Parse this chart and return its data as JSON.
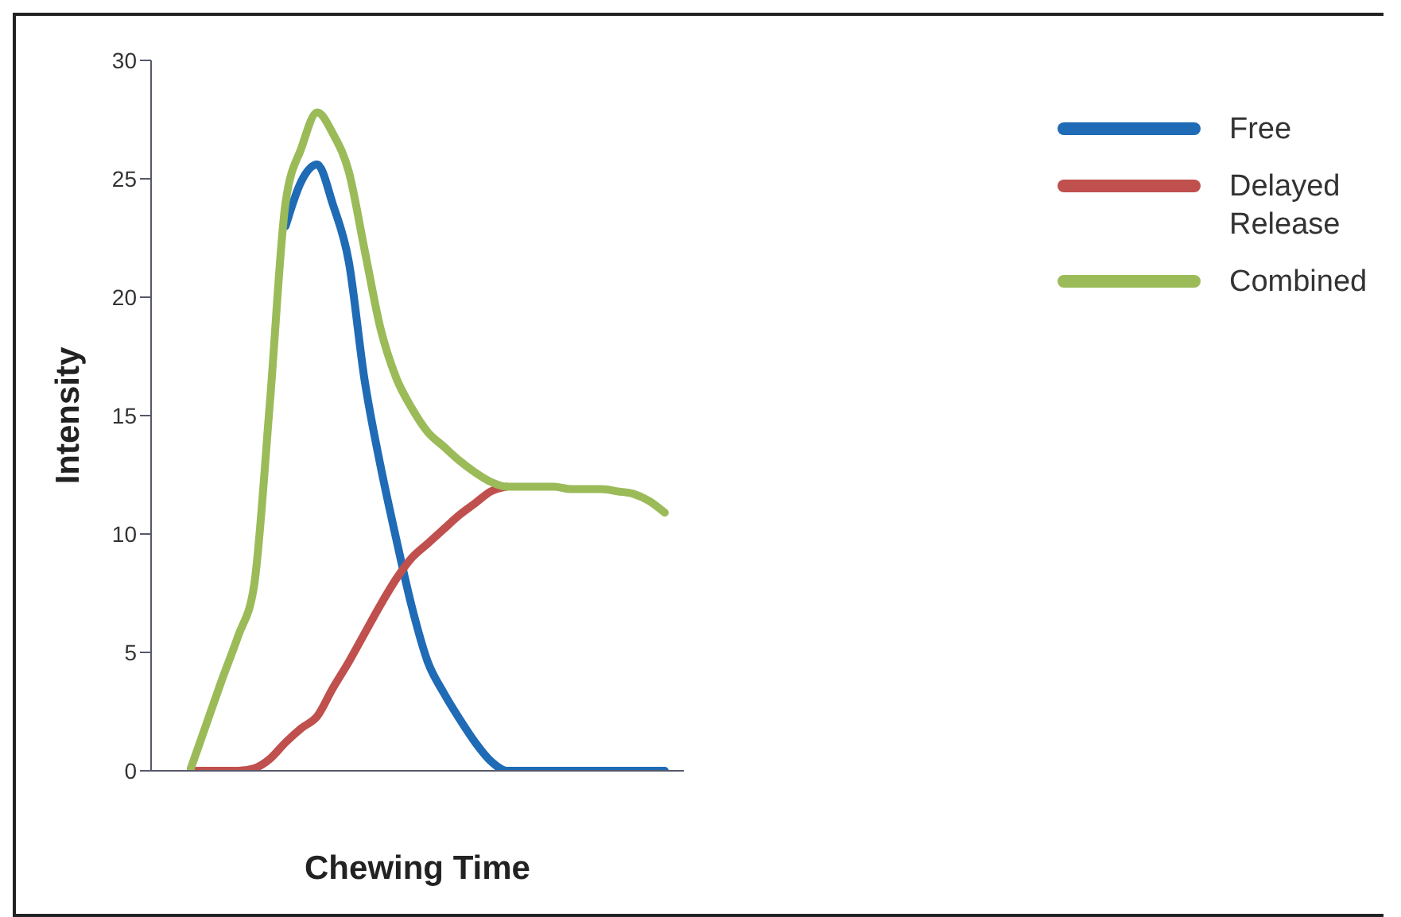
{
  "chart_data": {
    "type": "line",
    "xlabel": "Chewing Time",
    "ylabel": "Intensity",
    "categories": [
      null,
      null,
      null,
      null,
      null,
      null,
      null,
      null,
      null,
      null,
      null,
      null,
      null,
      null,
      null,
      null,
      null,
      null,
      null,
      null,
      null,
      null,
      null,
      null,
      null,
      null,
      null,
      null,
      null,
      null,
      null
    ],
    "series": [
      {
        "name": "Free",
        "color": "#1f6bb5",
        "values": [
          null,
          null,
          null,
          null,
          null,
          null,
          23.0,
          24.9,
          25.6,
          23.9,
          21.5,
          16.5,
          12.9,
          9.8,
          6.9,
          4.6,
          3.3,
          2.2,
          1.2,
          0.4,
          0,
          0,
          0,
          0,
          0,
          0,
          0,
          0,
          0,
          0,
          0
        ]
      },
      {
        "name": "Delayed Release",
        "color": "#c0504d",
        "values": [
          0,
          0,
          0,
          0,
          0.1,
          0.5,
          1.2,
          1.8,
          2.3,
          3.5,
          4.6,
          5.8,
          7.0,
          8.1,
          9.0,
          9.6,
          10.2,
          10.8,
          11.3,
          11.8,
          12.0,
          null,
          null,
          null,
          null,
          null,
          null,
          null,
          null,
          null,
          null
        ]
      },
      {
        "name": "Combined",
        "color": "#9bbb59",
        "values": [
          0.1,
          2.0,
          3.9,
          5.7,
          7.8,
          15.5,
          24.0,
          26.3,
          27.8,
          26.9,
          25.3,
          22.0,
          18.7,
          16.6,
          15.3,
          14.3,
          13.7,
          13.1,
          12.6,
          12.2,
          12.0,
          12.0,
          12.0,
          12.0,
          11.9,
          11.9,
          11.9,
          11.8,
          11.7,
          11.4,
          10.9
        ]
      }
    ],
    "ylim": [
      0,
      30
    ],
    "yticks": [
      0,
      5,
      10,
      15,
      20,
      25,
      30
    ],
    "grid": false,
    "legend": "top right",
    "marker": "none",
    "line_style": "solid"
  }
}
